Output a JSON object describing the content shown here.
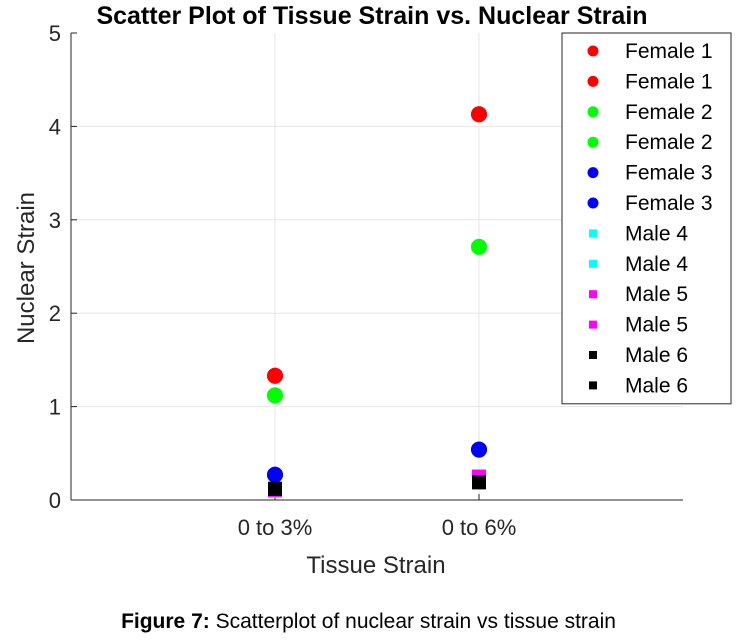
{
  "chart_data": {
    "type": "scatter",
    "title": "Scatter Plot of Tissue Strain vs. Nuclear Strain",
    "xlabel": "Tissue Strain",
    "ylabel": "Nuclear Strain",
    "categories": [
      "0 to 3%",
      "0 to 6%"
    ],
    "ylim": [
      0,
      5
    ],
    "yticks": [
      "0",
      "1",
      "2",
      "3",
      "4",
      "5"
    ],
    "grid": true,
    "legend_position": "top-right",
    "series": [
      {
        "name": "Female 1",
        "marker": "circle",
        "color": "#ff0000",
        "values": [
          1.33,
          4.13
        ]
      },
      {
        "name": "Female 1",
        "marker": "circle",
        "color": "#ff0000",
        "values": [
          1.33,
          4.13
        ]
      },
      {
        "name": "Female 2",
        "marker": "circle",
        "color": "#00ff00",
        "values": [
          1.12,
          2.71
        ]
      },
      {
        "name": "Female 2",
        "marker": "circle",
        "color": "#00ff00",
        "values": [
          1.12,
          2.71
        ]
      },
      {
        "name": "Female 3",
        "marker": "circle",
        "color": "#0000ff",
        "values": [
          0.27,
          0.54
        ]
      },
      {
        "name": "Female 3",
        "marker": "circle",
        "color": "#0000ff",
        "values": [
          0.27,
          0.54
        ]
      },
      {
        "name": "Male 4",
        "marker": "square",
        "color": "#00ffff",
        "values": [
          0.1,
          0.2
        ]
      },
      {
        "name": "Male 4",
        "marker": "square",
        "color": "#00ffff",
        "values": [
          0.1,
          0.2
        ]
      },
      {
        "name": "Male 5",
        "marker": "square",
        "color": "#ff00ff",
        "values": [
          0.11,
          0.25
        ]
      },
      {
        "name": "Male 5",
        "marker": "square",
        "color": "#ff00ff",
        "values": [
          0.11,
          0.25
        ]
      },
      {
        "name": "Male 6",
        "marker": "square",
        "color": "#000000",
        "values": [
          0.12,
          0.19
        ]
      },
      {
        "name": "Male 6",
        "marker": "square",
        "color": "#000000",
        "values": [
          0.12,
          0.19
        ]
      }
    ]
  },
  "caption": {
    "label": "Figure 7:",
    "text": " Scatterplot of nuclear strain vs tissue strain"
  }
}
